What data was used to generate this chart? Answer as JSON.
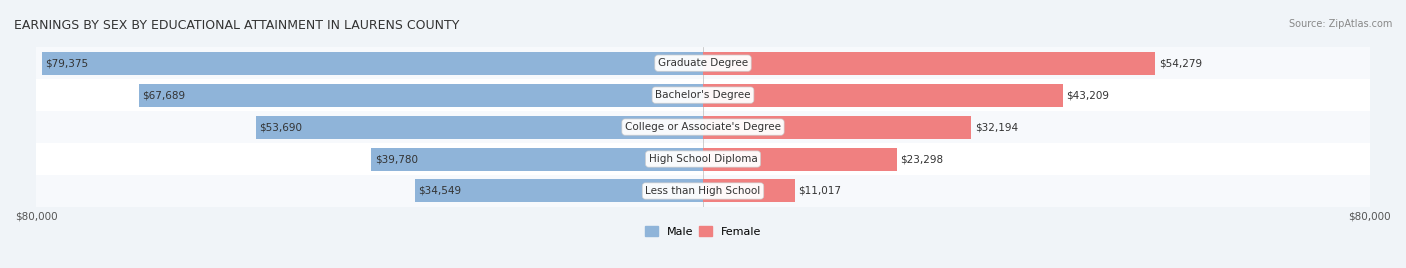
{
  "title": "EARNINGS BY SEX BY EDUCATIONAL ATTAINMENT IN LAURENS COUNTY",
  "source": "Source: ZipAtlas.com",
  "categories": [
    "Less than High School",
    "High School Diploma",
    "College or Associate's Degree",
    "Bachelor's Degree",
    "Graduate Degree"
  ],
  "male_values": [
    34549,
    39780,
    53690,
    67689,
    79375
  ],
  "female_values": [
    11017,
    23298,
    32194,
    43209,
    54279
  ],
  "male_color": "#8fb4d9",
  "female_color": "#f08080",
  "male_color_dark": "#6a9ec8",
  "female_color_dark": "#e06070",
  "max_value": 80000,
  "background_color": "#f0f4f8",
  "row_bg_light": "#f7f9fc",
  "row_bg_lighter": "#ffffff",
  "title_fontsize": 9,
  "label_fontsize": 7.5,
  "tick_fontsize": 7.5,
  "legend_fontsize": 8
}
